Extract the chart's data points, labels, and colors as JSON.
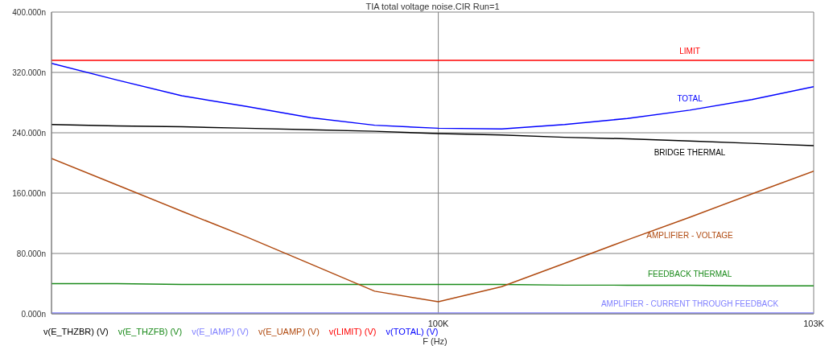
{
  "chart_data": {
    "type": "line",
    "title": "TIA total voltage noise.CIR Run=1",
    "xlabel": "F (Hz)",
    "x": [
      97000,
      97500,
      98000,
      98500,
      99000,
      99500,
      100000,
      100500,
      101000,
      101500,
      102000,
      102500,
      103000
    ],
    "series": [
      {
        "name": "v(E_THZBR) (V)",
        "color": "#000000",
        "values": [
          251,
          249,
          248,
          246,
          244,
          242,
          239,
          237,
          234,
          232,
          229,
          226,
          223
        ]
      },
      {
        "name": "v(E_THZFB) (V)",
        "color": "#1a8a1a",
        "values": [
          40,
          40,
          39,
          39,
          39,
          39,
          39,
          39,
          38,
          38,
          38,
          37,
          37
        ]
      },
      {
        "name": "v(E_IAMP) (V)",
        "color": "#8080ff",
        "values": [
          1,
          1,
          1,
          1,
          1,
          1,
          1,
          1,
          1,
          1,
          1,
          1,
          1
        ]
      },
      {
        "name": "v(E_UAMP) (V)",
        "color": "#b04a10",
        "values": [
          206,
          171,
          136,
          102,
          66,
          30,
          16,
          36,
          67,
          98,
          128,
          159,
          189
        ]
      },
      {
        "name": "v(LIMIT) (V)",
        "color": "#ff0000",
        "values": [
          336,
          336,
          336,
          336,
          336,
          336,
          336,
          336,
          336,
          336,
          336,
          336,
          336
        ]
      },
      {
        "name": "v(TOTAL) (V)",
        "color": "#0000ff",
        "values": [
          332,
          310,
          289,
          275,
          260,
          250,
          246,
          245,
          251,
          259,
          270,
          284,
          301
        ]
      }
    ],
    "annotations": [
      "BRIDGE THERMAL",
      "FEEDBACK THERMAL",
      "AMPLIFIER - CURRENT THROUGH FEEDBACK",
      "AMPLIFIER - VOLTAGE",
      "LIMIT",
      "TOTAL"
    ],
    "xlim": [
      97000,
      103000
    ],
    "xticks": [
      {
        "value": 100000,
        "label": "100K"
      },
      {
        "value": 103000,
        "label": "103K"
      }
    ],
    "log": "x",
    "ylim": [
      0,
      400
    ],
    "yticks": [
      {
        "value": 0,
        "label": "0.000n"
      },
      {
        "value": 80,
        "label": "80.000n"
      },
      {
        "value": 160,
        "label": "160.000n"
      },
      {
        "value": 240,
        "label": "240.000n"
      },
      {
        "value": 320,
        "label": "320.000n"
      },
      {
        "value": 400,
        "label": "400.000n"
      }
    ],
    "grid": true,
    "legend": "bottom",
    "marker": "none",
    "line_style": "solid"
  }
}
